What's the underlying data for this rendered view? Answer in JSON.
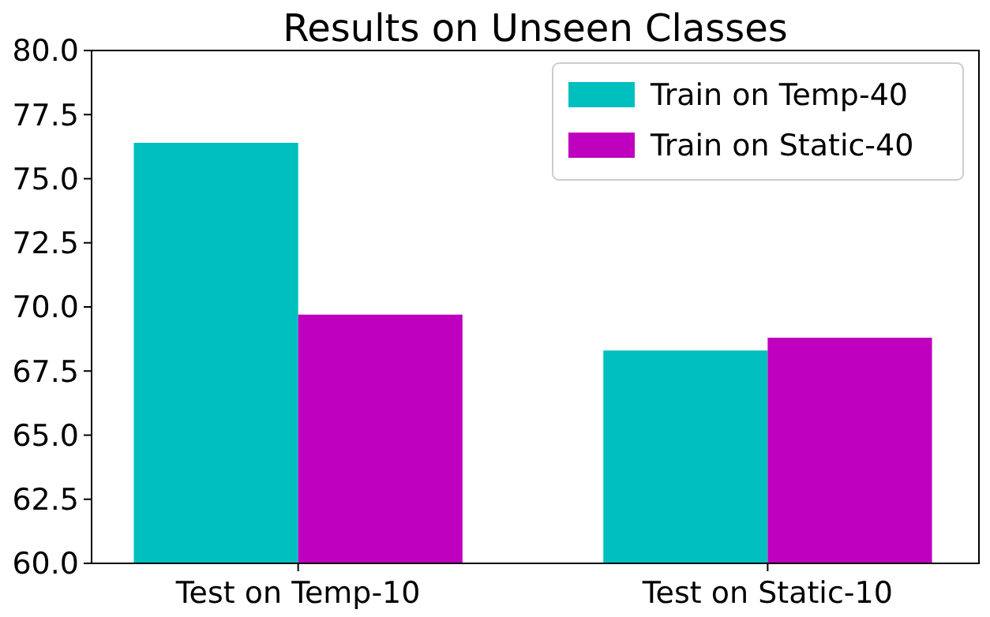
{
  "chart_data": {
    "type": "bar",
    "title": "Results on Unseen Classes",
    "categories": [
      "Test on Temp-10",
      "Test on Static-10"
    ],
    "series": [
      {
        "name": "Train on Temp-40",
        "color": "#00bfbf",
        "values": [
          76.4,
          68.3
        ]
      },
      {
        "name": "Train on Static-40",
        "color": "#bf00bf",
        "values": [
          69.7,
          68.8
        ]
      }
    ],
    "ylim": [
      60,
      80
    ],
    "yticks": [
      {
        "value": 60,
        "label": "60.0"
      },
      {
        "value": 62.5,
        "label": "62.5"
      },
      {
        "value": 65,
        "label": "65.0"
      },
      {
        "value": 67.5,
        "label": "67.5"
      },
      {
        "value": 70,
        "label": "70.0"
      },
      {
        "value": 72.5,
        "label": "72.5"
      },
      {
        "value": 75,
        "label": "75.0"
      },
      {
        "value": 77.5,
        "label": "77.5"
      },
      {
        "value": 80,
        "label": "80.0"
      }
    ],
    "legend": "top right"
  }
}
